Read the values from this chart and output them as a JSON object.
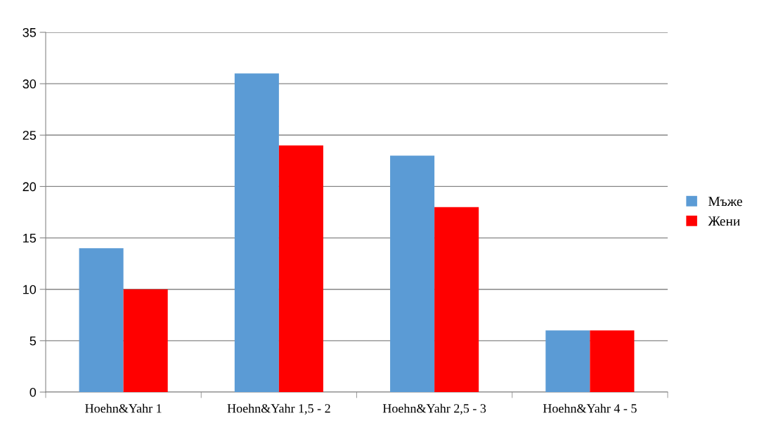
{
  "chart_data": {
    "type": "bar",
    "categories": [
      "Hoehn&Yahr 1",
      "Hoehn&Yahr 1,5 - 2",
      "Hoehn&Yahr 2,5 - 3",
      "Hoehn&Yahr 4 - 5"
    ],
    "series": [
      {
        "name": "Мъже",
        "color": "#5b9bd5",
        "values": [
          14,
          31,
          23,
          6
        ]
      },
      {
        "name": "Жени",
        "color": "#ff0000",
        "values": [
          10,
          24,
          18,
          6
        ]
      }
    ],
    "ylim": [
      0,
      35
    ],
    "yticks": [
      0,
      5,
      10,
      15,
      20,
      25,
      30,
      35
    ],
    "grid": "y",
    "legend": "right"
  }
}
